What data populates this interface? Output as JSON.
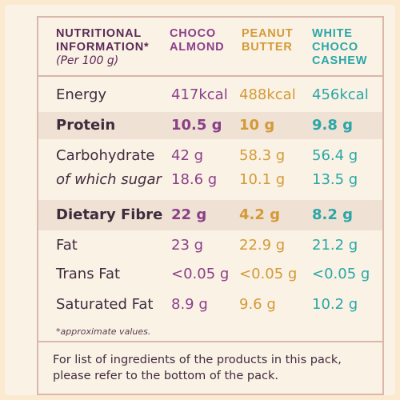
{
  "header": {
    "title_line1": "NUTRITIONAL",
    "title_line2": "INFORMATION*",
    "subtitle": "(Per 100 g)",
    "col1_line1": "CHOCO",
    "col1_line2": "ALMOND",
    "col2_line1": "PEANUT",
    "col2_line2": "BUTTER",
    "col3_line1": "WHITE",
    "col3_line2": "CHOCO",
    "col3_line3": "CASHEW"
  },
  "rows": [
    {
      "label": "Energy",
      "v1": "417kcal",
      "v2": "488kcal",
      "v3": "456kcal"
    },
    {
      "label": "Protein",
      "v1": "10.5 g",
      "v2": "10 g",
      "v3": "9.8 g"
    },
    {
      "label": "Carbohydrate",
      "v1": "42 g",
      "v2": "58.3 g",
      "v3": "56.4 g"
    },
    {
      "label": "of which sugar",
      "v1": "18.6 g",
      "v2": "10.1 g",
      "v3": "13.5 g"
    },
    {
      "label": "Dietary Fibre",
      "v1": "22 g",
      "v2": "4.2 g",
      "v3": "8.2 g"
    },
    {
      "label": "Fat",
      "v1": "23 g",
      "v2": "22.9 g",
      "v3": "21.2 g"
    },
    {
      "label": "Trans Fat",
      "v1": "<0.05 g",
      "v2": "<0.05 g",
      "v3": "<0.05 g"
    },
    {
      "label": "Saturated Fat",
      "v1": "8.9 g",
      "v2": "9.6 g",
      "v3": "10.2 g"
    }
  ],
  "note": "*approximate values.",
  "footer": "For list of ingredients of the products in this pack, please refer to the bottom of the pack.",
  "colors": {
    "choco_almond": "#8a3f88",
    "peanut_butter": "#d39a36",
    "white_choco_cashew": "#2aa6a6",
    "heading": "#5a2a55",
    "border": "#d9b7ab"
  }
}
